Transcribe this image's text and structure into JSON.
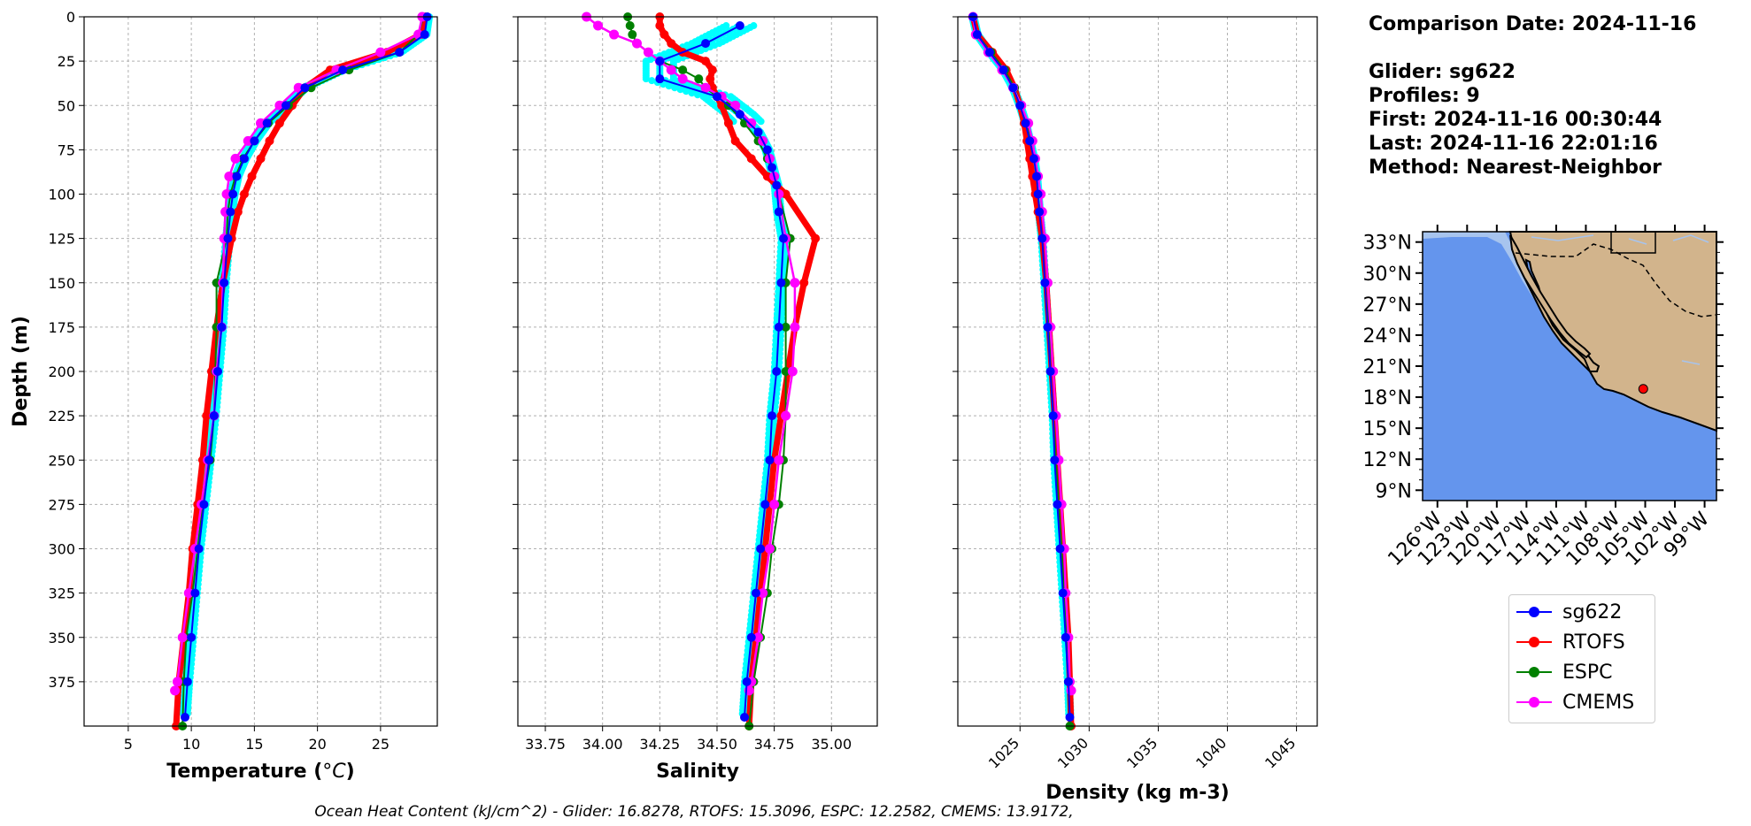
{
  "info": {
    "comparison_date": "Comparison Date: 2024-11-16",
    "glider": "Glider: sg622",
    "profiles": "Profiles: 9",
    "first": "First: 2024-11-16 00:30:44",
    "last": "Last: 2024-11-16 22:01:16",
    "method": "Method: Nearest-Neighbor"
  },
  "footer": "Ocean Heat Content (kJ/cm^2) - Glider: 16.8278,  RTOFS: 15.3096,  ESPC: 12.2582,  CMEMS: 13.9172,",
  "legend": [
    {
      "name": "sg622",
      "color": "#0000ff"
    },
    {
      "name": "RTOFS",
      "color": "#ff0000"
    },
    {
      "name": "ESPC",
      "color": "#008000"
    },
    {
      "name": "CMEMS",
      "color": "#ff00ff"
    }
  ],
  "colors": {
    "glider": "#0000ff",
    "rtofs": "#ff0000",
    "espc": "#008000",
    "cmems": "#ff00ff",
    "raw": "#00ffff",
    "ocean": "#6495ed",
    "land": "#d2b48c",
    "shelf": "#a7c4ee"
  },
  "chart_data": [
    {
      "type": "line",
      "xlabel_prefix": "Temperature (",
      "xlabel_unit": "°C",
      "xlabel_suffix": ")",
      "ylabel": "Depth (m)",
      "xlim": [
        1.5,
        29.5
      ],
      "ylim": [
        400,
        0
      ],
      "xticks": [
        5,
        10,
        15,
        20,
        25
      ],
      "yticks": [
        0,
        25,
        50,
        75,
        100,
        125,
        150,
        175,
        200,
        225,
        250,
        275,
        300,
        325,
        350,
        375
      ],
      "grid": true,
      "series": [
        {
          "name": "sg622",
          "y": [
            0,
            10,
            20,
            30,
            40,
            50,
            60,
            70,
            80,
            90,
            100,
            110,
            125,
            150,
            175,
            200,
            225,
            250,
            275,
            300,
            325,
            350,
            375,
            395
          ],
          "values": [
            28.7,
            28.5,
            26.5,
            22.0,
            19.0,
            17.5,
            16.0,
            15.0,
            14.2,
            13.6,
            13.3,
            13.1,
            12.9,
            12.6,
            12.4,
            12.1,
            11.8,
            11.4,
            11.0,
            10.6,
            10.3,
            10.0,
            9.7,
            9.5
          ]
        },
        {
          "name": "RTOFS",
          "y": [
            0,
            10,
            20,
            30,
            40,
            50,
            60,
            70,
            80,
            90,
            100,
            110,
            125,
            150,
            175,
            200,
            225,
            250,
            275,
            300,
            325,
            350,
            375,
            400
          ],
          "values": [
            28.5,
            28.2,
            25.5,
            21.0,
            19.0,
            18.0,
            17.0,
            16.2,
            15.5,
            14.8,
            14.2,
            13.7,
            13.2,
            12.5,
            12.0,
            11.6,
            11.2,
            10.9,
            10.5,
            10.1,
            9.8,
            9.4,
            9.0,
            8.8
          ]
        },
        {
          "name": "ESPC",
          "y": [
            0,
            10,
            20,
            30,
            40,
            50,
            60,
            70,
            80,
            90,
            100,
            110,
            125,
            150,
            175,
            200,
            225,
            250,
            275,
            300,
            325,
            350,
            375,
            400
          ],
          "values": [
            28.4,
            28.0,
            26.5,
            22.5,
            19.5,
            17.7,
            16.1,
            15.0,
            14.1,
            13.5,
            13.1,
            12.9,
            12.8,
            12.0,
            12.0,
            11.9,
            11.8,
            11.5,
            10.9,
            10.5,
            10.1,
            9.6,
            9.4,
            9.3
          ]
        },
        {
          "name": "CMEMS",
          "y": [
            0,
            10,
            20,
            30,
            40,
            50,
            60,
            70,
            80,
            90,
            100,
            110,
            125,
            150,
            175,
            200,
            225,
            250,
            275,
            300,
            325,
            350,
            375,
            380
          ],
          "values": [
            28.3,
            28.0,
            25.0,
            21.5,
            18.5,
            17.0,
            15.5,
            14.5,
            13.5,
            13.0,
            12.8,
            12.7,
            12.6,
            12.5,
            12.4,
            12.0,
            11.8,
            11.3,
            10.8,
            10.3,
            9.8,
            9.3,
            8.9,
            8.7
          ]
        }
      ]
    },
    {
      "type": "line",
      "xlabel": "Salinity",
      "xlim": [
        33.63,
        35.2
      ],
      "ylim": [
        400,
        0
      ],
      "xticks": [
        "33.75",
        "34.00",
        "34.25",
        "34.50",
        "34.75",
        "35.00"
      ],
      "grid": true,
      "series": [
        {
          "name": "sg622",
          "y": [
            5,
            15,
            25,
            35,
            45,
            55,
            65,
            75,
            85,
            95,
            110,
            125,
            150,
            175,
            200,
            225,
            250,
            275,
            300,
            325,
            350,
            375,
            395
          ],
          "values": [
            34.6,
            34.45,
            34.25,
            34.25,
            34.5,
            34.6,
            34.68,
            34.72,
            34.74,
            34.76,
            34.77,
            34.79,
            34.78,
            34.77,
            34.76,
            34.74,
            34.73,
            34.71,
            34.69,
            34.67,
            34.65,
            34.63,
            34.62
          ]
        },
        {
          "name": "RTOFS",
          "y": [
            0,
            5,
            10,
            15,
            20,
            25,
            30,
            35,
            40,
            45,
            50,
            60,
            70,
            80,
            90,
            100,
            125,
            150,
            175,
            200,
            225,
            250,
            275,
            300,
            325,
            350,
            375,
            400
          ],
          "values": [
            34.25,
            34.25,
            34.27,
            34.3,
            34.35,
            34.45,
            34.48,
            34.47,
            34.48,
            34.5,
            34.52,
            34.55,
            34.58,
            34.65,
            34.72,
            34.8,
            34.93,
            34.88,
            34.84,
            34.81,
            34.78,
            34.75,
            34.73,
            34.71,
            34.69,
            34.67,
            34.65,
            34.64
          ]
        },
        {
          "name": "ESPC",
          "y": [
            0,
            5,
            10,
            15,
            20,
            25,
            30,
            35,
            40,
            45,
            50,
            60,
            70,
            80,
            90,
            100,
            125,
            150,
            175,
            200,
            225,
            250,
            275,
            300,
            325,
            350,
            375,
            400
          ],
          "values": [
            34.11,
            34.12,
            34.13,
            34.15,
            34.2,
            34.25,
            34.35,
            34.42,
            34.45,
            34.5,
            34.55,
            34.62,
            34.68,
            34.72,
            34.75,
            34.77,
            34.82,
            34.8,
            34.8,
            34.8,
            34.8,
            34.79,
            34.77,
            34.74,
            34.72,
            34.69,
            34.66,
            34.64
          ]
        },
        {
          "name": "CMEMS",
          "y": [
            0,
            5,
            10,
            15,
            20,
            25,
            30,
            35,
            40,
            45,
            50,
            60,
            70,
            80,
            90,
            100,
            125,
            150,
            175,
            200,
            225,
            250,
            275,
            300,
            325,
            350,
            375,
            380
          ],
          "values": [
            33.93,
            33.98,
            34.05,
            34.15,
            34.2,
            34.25,
            34.3,
            34.35,
            34.45,
            34.52,
            34.58,
            34.65,
            34.7,
            34.73,
            34.75,
            34.77,
            34.8,
            34.84,
            34.84,
            34.83,
            34.8,
            34.77,
            34.75,
            34.73,
            34.7,
            34.68,
            34.65,
            34.64
          ]
        }
      ]
    },
    {
      "type": "line",
      "xlabel": "Density (kg m-3)",
      "xlim": [
        1020.5,
        1046.5
      ],
      "ylim": [
        400,
        0
      ],
      "xticks": [
        1025,
        1030,
        1035,
        1040,
        1045
      ],
      "grid": true,
      "series": [
        {
          "name": "sg622",
          "y": [
            0,
            10,
            20,
            30,
            40,
            50,
            60,
            70,
            80,
            90,
            100,
            110,
            125,
            150,
            175,
            200,
            225,
            250,
            275,
            300,
            325,
            350,
            375,
            395
          ],
          "values": [
            1021.6,
            1021.9,
            1022.8,
            1023.8,
            1024.5,
            1025.0,
            1025.4,
            1025.7,
            1026.0,
            1026.2,
            1026.3,
            1026.4,
            1026.6,
            1026.8,
            1027.0,
            1027.2,
            1027.4,
            1027.5,
            1027.7,
            1027.9,
            1028.1,
            1028.3,
            1028.5,
            1028.6
          ]
        },
        {
          "name": "RTOFS",
          "y": [
            0,
            10,
            20,
            30,
            40,
            50,
            60,
            70,
            80,
            90,
            100,
            110,
            125,
            150,
            175,
            200,
            225,
            250,
            275,
            300,
            325,
            350,
            375,
            400
          ],
          "values": [
            1021.6,
            1021.9,
            1023.0,
            1024.0,
            1024.6,
            1025.0,
            1025.3,
            1025.5,
            1025.7,
            1025.9,
            1026.1,
            1026.3,
            1026.6,
            1026.9,
            1027.1,
            1027.3,
            1027.5,
            1027.7,
            1027.9,
            1028.1,
            1028.3,
            1028.5,
            1028.6,
            1028.7
          ]
        },
        {
          "name": "ESPC",
          "y": [
            0,
            10,
            20,
            30,
            40,
            50,
            60,
            70,
            80,
            90,
            100,
            110,
            125,
            150,
            175,
            200,
            225,
            250,
            275,
            300,
            325,
            350,
            375,
            400
          ],
          "values": [
            1021.6,
            1021.9,
            1022.9,
            1023.9,
            1024.6,
            1025.1,
            1025.5,
            1025.8,
            1026.1,
            1026.3,
            1026.5,
            1026.6,
            1026.8,
            1027.0,
            1027.1,
            1027.2,
            1027.4,
            1027.6,
            1027.8,
            1028.0,
            1028.2,
            1028.4,
            1028.5,
            1028.6
          ]
        },
        {
          "name": "CMEMS",
          "y": [
            0,
            10,
            20,
            30,
            40,
            50,
            60,
            70,
            80,
            90,
            100,
            110,
            125,
            150,
            175,
            200,
            225,
            250,
            275,
            300,
            325,
            350,
            375,
            380
          ],
          "values": [
            1021.6,
            1021.8,
            1022.7,
            1023.7,
            1024.5,
            1025.1,
            1025.6,
            1025.9,
            1026.1,
            1026.3,
            1026.5,
            1026.6,
            1026.8,
            1027.0,
            1027.2,
            1027.4,
            1027.6,
            1027.8,
            1028.0,
            1028.2,
            1028.3,
            1028.5,
            1028.6,
            1028.7
          ]
        }
      ]
    }
  ],
  "map": {
    "lat_ticks": [
      "33°N",
      "30°N",
      "27°N",
      "24°N",
      "21°N",
      "18°N",
      "15°N",
      "12°N",
      "9°N"
    ],
    "lon_ticks": [
      "126°W",
      "123°W",
      "120°W",
      "117°W",
      "114°W",
      "111°W",
      "108°W",
      "105°W",
      "102°W",
      "99°W"
    ],
    "glider_position": {
      "lat": 18.8,
      "lon": -105.2
    }
  }
}
